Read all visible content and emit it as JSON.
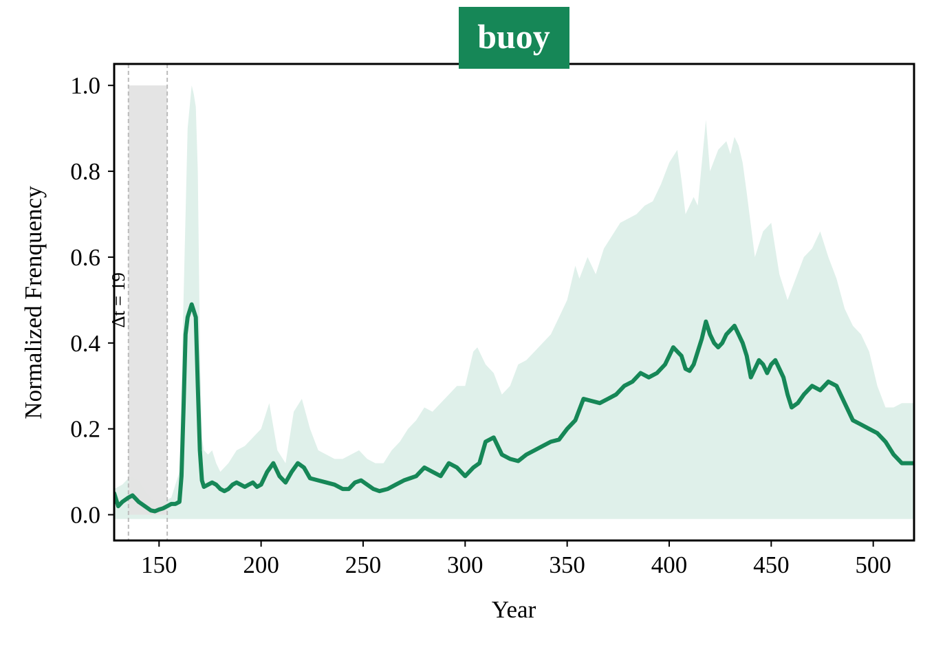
{
  "colors": {
    "line": "#168757",
    "band": "#dff0ea",
    "title_bg": "#168757",
    "shade": "#e3e3e3",
    "guide": "#bbbbbb"
  },
  "chart_data": {
    "type": "line",
    "title": "buoy",
    "xlabel": "Year",
    "ylabel": "Normalized Frenquency",
    "xlim": [
      128,
      520
    ],
    "ylim": [
      -0.06,
      1.05
    ],
    "xticks": [
      150,
      200,
      250,
      300,
      350,
      400,
      450,
      500
    ],
    "yticks": [
      0.0,
      0.2,
      0.4,
      0.6,
      0.8,
      1.0
    ],
    "xtick_labels": [
      "150",
      "200",
      "250",
      "300",
      "350",
      "400",
      "450",
      "500"
    ],
    "ytick_labels": [
      "0.0",
      "0.2",
      "0.4",
      "0.6",
      "0.8",
      "1.0"
    ],
    "grid": false,
    "shaded_region": {
      "x": [
        135,
        154
      ],
      "y": [
        0.0,
        1.0
      ],
      "label": "Δt = 19"
    },
    "series": [
      {
        "x": [
          128,
          130,
          132,
          135,
          137,
          140,
          143,
          146,
          148,
          150,
          152,
          154,
          156,
          158,
          160,
          161,
          162,
          163,
          164,
          166,
          168,
          169,
          170,
          171,
          172,
          174,
          176,
          178,
          180,
          182,
          184,
          186,
          188,
          190,
          192,
          194,
          196,
          198,
          200,
          203,
          206,
          209,
          212,
          215,
          218,
          221,
          224,
          228,
          232,
          236,
          240,
          243,
          246,
          249,
          252,
          255,
          258,
          262,
          266,
          270,
          273,
          276,
          280,
          284,
          288,
          292,
          296,
          300,
          304,
          307,
          310,
          314,
          318,
          322,
          326,
          330,
          334,
          338,
          342,
          346,
          350,
          354,
          358,
          362,
          366,
          370,
          374,
          378,
          382,
          386,
          390,
          394,
          398,
          400,
          402,
          404,
          406,
          408,
          410,
          412,
          414,
          416,
          418,
          420,
          422,
          424,
          426,
          428,
          430,
          432,
          434,
          436,
          438,
          440,
          442,
          444,
          446,
          448,
          450,
          452,
          454,
          456,
          458,
          460,
          463,
          466,
          470,
          474,
          478,
          482,
          486,
          490,
          494,
          498,
          502,
          506,
          510,
          514,
          520
        ],
        "values": [
          0.05,
          0.02,
          0.03,
          0.04,
          0.045,
          0.03,
          0.02,
          0.01,
          0.008,
          0.012,
          0.015,
          0.02,
          0.025,
          0.025,
          0.03,
          0.09,
          0.25,
          0.42,
          0.46,
          0.49,
          0.46,
          0.3,
          0.15,
          0.08,
          0.065,
          0.07,
          0.075,
          0.07,
          0.06,
          0.055,
          0.06,
          0.07,
          0.075,
          0.07,
          0.065,
          0.07,
          0.075,
          0.065,
          0.07,
          0.1,
          0.12,
          0.09,
          0.075,
          0.1,
          0.12,
          0.11,
          0.085,
          0.08,
          0.075,
          0.07,
          0.06,
          0.06,
          0.075,
          0.08,
          0.07,
          0.06,
          0.055,
          0.06,
          0.07,
          0.08,
          0.085,
          0.09,
          0.11,
          0.1,
          0.09,
          0.12,
          0.11,
          0.09,
          0.11,
          0.12,
          0.17,
          0.18,
          0.14,
          0.13,
          0.125,
          0.14,
          0.15,
          0.16,
          0.17,
          0.175,
          0.2,
          0.22,
          0.27,
          0.265,
          0.26,
          0.27,
          0.28,
          0.3,
          0.31,
          0.33,
          0.32,
          0.33,
          0.35,
          0.37,
          0.39,
          0.38,
          0.37,
          0.34,
          0.335,
          0.35,
          0.38,
          0.41,
          0.45,
          0.42,
          0.4,
          0.39,
          0.4,
          0.42,
          0.43,
          0.44,
          0.42,
          0.4,
          0.37,
          0.32,
          0.34,
          0.36,
          0.35,
          0.33,
          0.35,
          0.36,
          0.34,
          0.32,
          0.28,
          0.25,
          0.26,
          0.28,
          0.3,
          0.29,
          0.31,
          0.3,
          0.26,
          0.22,
          0.21,
          0.2,
          0.19,
          0.17,
          0.14,
          0.12,
          0.12
        ]
      }
    ],
    "band": {
      "x": [
        128,
        132,
        136,
        140,
        144,
        148,
        152,
        156,
        160,
        163,
        164,
        166,
        167,
        168,
        169,
        170,
        171,
        172,
        174,
        176,
        178,
        180,
        184,
        188,
        192,
        196,
        200,
        204,
        208,
        212,
        216,
        220,
        224,
        228,
        232,
        236,
        240,
        244,
        248,
        252,
        256,
        260,
        264,
        268,
        272,
        276,
        280,
        284,
        288,
        292,
        296,
        300,
        304,
        306,
        310,
        314,
        318,
        322,
        326,
        330,
        334,
        338,
        342,
        346,
        350,
        354,
        356,
        360,
        364,
        368,
        372,
        376,
        380,
        384,
        388,
        392,
        396,
        400,
        404,
        406,
        408,
        412,
        414,
        418,
        420,
        424,
        426,
        428,
        430,
        432,
        434,
        436,
        438,
        442,
        446,
        450,
        454,
        458,
        462,
        466,
        470,
        474,
        478,
        482,
        486,
        490,
        494,
        498,
        502,
        506,
        510,
        514,
        520
      ],
      "upper": [
        0.06,
        0.07,
        0.09,
        0.08,
        0.05,
        0.03,
        0.03,
        0.04,
        0.1,
        0.7,
        0.9,
        1.0,
        0.98,
        0.95,
        0.8,
        0.4,
        0.18,
        0.15,
        0.14,
        0.15,
        0.12,
        0.1,
        0.12,
        0.15,
        0.16,
        0.18,
        0.2,
        0.26,
        0.15,
        0.12,
        0.24,
        0.27,
        0.2,
        0.15,
        0.14,
        0.13,
        0.13,
        0.14,
        0.15,
        0.13,
        0.12,
        0.12,
        0.15,
        0.17,
        0.2,
        0.22,
        0.25,
        0.24,
        0.26,
        0.28,
        0.3,
        0.3,
        0.38,
        0.39,
        0.35,
        0.33,
        0.28,
        0.3,
        0.35,
        0.36,
        0.38,
        0.4,
        0.42,
        0.46,
        0.5,
        0.58,
        0.55,
        0.6,
        0.56,
        0.62,
        0.65,
        0.68,
        0.69,
        0.7,
        0.72,
        0.73,
        0.77,
        0.82,
        0.85,
        0.78,
        0.7,
        0.74,
        0.72,
        0.92,
        0.8,
        0.85,
        0.86,
        0.87,
        0.84,
        0.88,
        0.86,
        0.82,
        0.75,
        0.6,
        0.66,
        0.68,
        0.56,
        0.5,
        0.55,
        0.6,
        0.62,
        0.66,
        0.6,
        0.55,
        0.48,
        0.44,
        0.42,
        0.38,
        0.3,
        0.25,
        0.25,
        0.26,
        0.26
      ],
      "lower": [
        -0.01,
        -0.01,
        -0.01,
        -0.01,
        -0.01,
        -0.01,
        -0.01,
        -0.01,
        -0.01,
        -0.01,
        -0.01,
        -0.01,
        -0.01,
        -0.01,
        -0.01,
        -0.01,
        -0.01,
        -0.01,
        -0.01,
        -0.01,
        -0.01,
        -0.01,
        -0.01,
        -0.01,
        -0.01,
        -0.01,
        -0.01,
        -0.01,
        -0.01,
        -0.01,
        -0.01,
        -0.01,
        -0.01,
        -0.01,
        -0.01,
        -0.01,
        -0.01,
        -0.01,
        -0.01,
        -0.01,
        -0.01,
        -0.01,
        -0.01,
        -0.01,
        -0.01,
        -0.01,
        -0.01,
        -0.01,
        -0.01,
        -0.01,
        -0.01,
        -0.01,
        -0.01,
        -0.01,
        -0.01,
        -0.01,
        -0.01,
        -0.01,
        -0.01,
        -0.01,
        -0.01,
        -0.01,
        -0.01,
        -0.01,
        -0.01,
        -0.01,
        -0.01,
        -0.01,
        -0.01,
        -0.01,
        -0.01,
        -0.01,
        -0.01,
        -0.01,
        -0.01,
        -0.01,
        -0.01,
        -0.01,
        -0.01,
        -0.01,
        -0.01,
        -0.01,
        -0.01,
        -0.01,
        -0.01,
        -0.01,
        -0.01,
        -0.01,
        -0.01,
        -0.01,
        -0.01,
        -0.01,
        -0.01,
        -0.01,
        -0.01,
        -0.01,
        -0.01,
        -0.01,
        -0.01,
        -0.01,
        -0.01,
        -0.01,
        -0.01,
        -0.01,
        -0.01,
        -0.01,
        -0.01,
        -0.01,
        -0.01,
        -0.01,
        -0.01,
        -0.01,
        -0.01
      ]
    }
  }
}
